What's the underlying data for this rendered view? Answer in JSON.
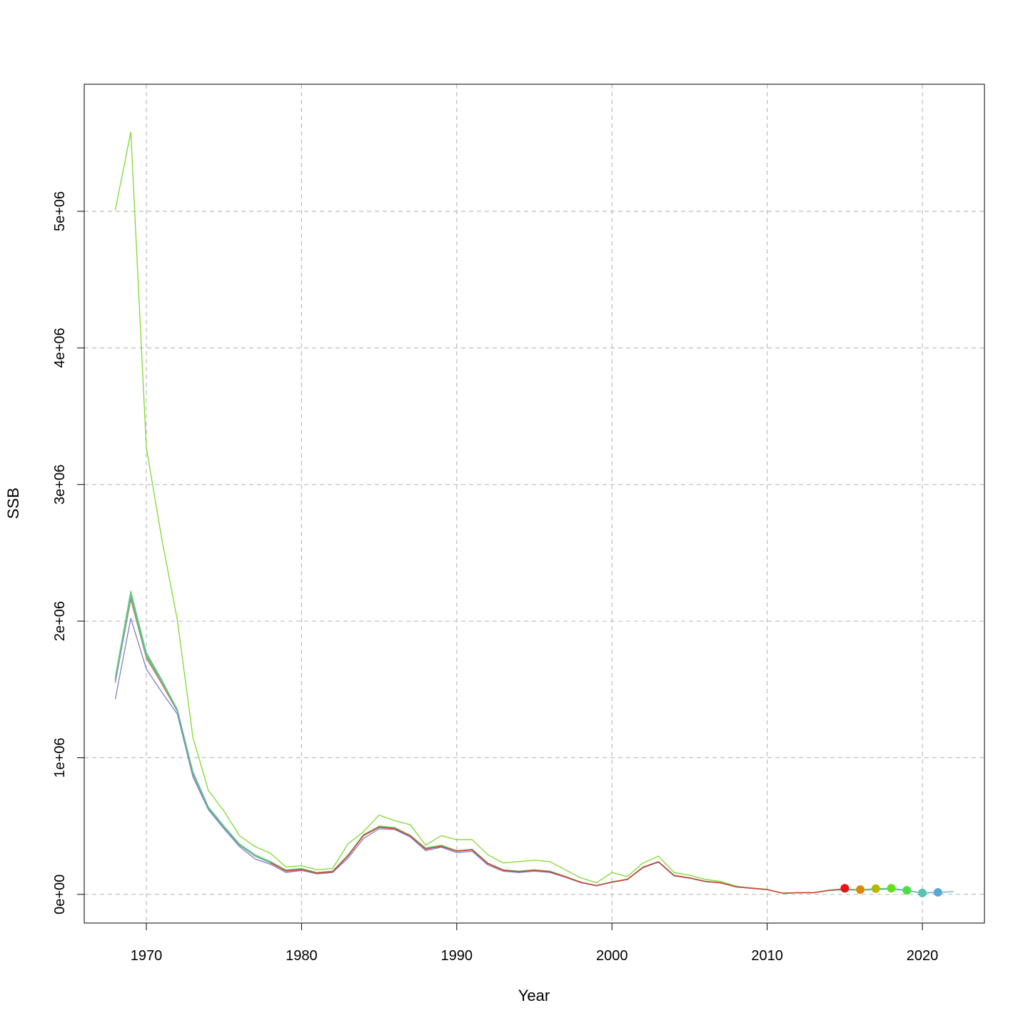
{
  "chart_data": {
    "type": "line",
    "title": "",
    "xlabel": "Year",
    "ylabel": "SSB",
    "xlim": [
      1966,
      2024
    ],
    "ylim": [
      -210000,
      5930000
    ],
    "x_ticks": [
      1970,
      1980,
      1990,
      2000,
      2010,
      2020
    ],
    "x_tick_labels": [
      "1970",
      "1980",
      "1990",
      "2000",
      "2010",
      "2020"
    ],
    "y_ticks": [
      0,
      1000000,
      2000000,
      3000000,
      4000000,
      5000000
    ],
    "y_tick_labels": [
      "0e+00",
      "1e+06",
      "2e+06",
      "3e+06",
      "4e+06",
      "5e+06"
    ],
    "grid": true,
    "series": [
      {
        "color": "#7FD82F",
        "x": [
          1968,
          1969,
          1970,
          1971,
          1972,
          1973,
          1974,
          1975,
          1976,
          1977,
          1978,
          1979,
          1980,
          1981,
          1982,
          1983,
          1984,
          1985,
          1986,
          1987,
          1988,
          1989,
          1990,
          1991,
          1992,
          1993,
          1994,
          1995,
          1996,
          1997,
          1998,
          1999,
          2000,
          2001,
          2002,
          2003,
          2004,
          2005,
          2006,
          2007,
          2008,
          2009,
          2010,
          2011,
          2012,
          2013,
          2014,
          2015,
          2016,
          2017,
          2018
        ],
        "y": [
          5010000,
          5580000,
          3270000,
          2600000,
          2010000,
          1150000,
          760000,
          610000,
          430000,
          350000,
          300000,
          200000,
          210000,
          180000,
          190000,
          370000,
          460000,
          580000,
          540000,
          510000,
          360000,
          430000,
          400000,
          400000,
          290000,
          230000,
          240000,
          250000,
          240000,
          180000,
          120000,
          85000,
          160000,
          130000,
          230000,
          280000,
          160000,
          140000,
          110000,
          95000,
          60000,
          45000,
          35000,
          10000,
          14000,
          14000,
          32000,
          38000,
          35000,
          42000,
          45000
        ]
      },
      {
        "color": "#6BAED6",
        "x": [
          1968,
          1969,
          1970,
          1971,
          1972,
          1973,
          1974,
          1975,
          1976,
          1977,
          1978,
          1979,
          1980,
          1981,
          1982,
          1983,
          1984,
          1985,
          1986,
          1987,
          1988,
          1989,
          1990,
          1991,
          1992,
          1993,
          1994,
          1995,
          1996,
          1997,
          1998,
          1999,
          2000,
          2001,
          2002,
          2003,
          2004,
          2005,
          2006,
          2007,
          2008,
          2009,
          2010,
          2011,
          2012,
          2013,
          2014,
          2015,
          2016,
          2017,
          2018,
          2019,
          2020,
          2021
        ],
        "y": [
          1590000,
          2220000,
          1770000,
          1570000,
          1350000,
          900000,
          640000,
          500000,
          370000,
          290000,
          240000,
          180000,
          190000,
          160000,
          170000,
          290000,
          430000,
          500000,
          490000,
          430000,
          340000,
          360000,
          320000,
          330000,
          230000,
          180000,
          170000,
          180000,
          170000,
          130000,
          90000,
          65000,
          90000,
          110000,
          200000,
          240000,
          140000,
          120000,
          95000,
          85000,
          55000,
          45000,
          35000,
          8000,
          12000,
          12000,
          28000,
          34000,
          30000,
          36000,
          40000,
          30000,
          10000,
          15000
        ]
      },
      {
        "color": "#7B7FD0",
        "x": [
          1968,
          1969,
          1970,
          1971,
          1972,
          1973,
          1974,
          1975,
          1976,
          1977,
          1978,
          1979,
          1980,
          1981,
          1982,
          1983,
          1984,
          1985,
          1986,
          1987,
          1988,
          1989,
          1990,
          1991,
          1992,
          1993,
          1994,
          1995,
          1996,
          1997,
          1998,
          1999,
          2000,
          2001,
          2002,
          2003,
          2004,
          2005,
          2006,
          2007,
          2008,
          2009,
          2010,
          2011,
          2012,
          2013,
          2014,
          2015
        ],
        "y": [
          1430000,
          2020000,
          1650000,
          1480000,
          1320000,
          860000,
          620000,
          480000,
          350000,
          260000,
          220000,
          160000,
          175000,
          150000,
          160000,
          265000,
          410000,
          480000,
          475000,
          420000,
          320000,
          345000,
          305000,
          315000,
          215000,
          170000,
          160000,
          170000,
          160000,
          125000,
          85000,
          62000,
          88000,
          108000,
          195000,
          235000,
          135000,
          118000,
          93000,
          83000,
          54000,
          44000,
          34000,
          8000,
          12000,
          12000,
          30000,
          38000
        ]
      },
      {
        "color": "#D46A2A",
        "x": [
          1968,
          1969,
          1970,
          1971,
          1972,
          1973,
          1974,
          1975,
          1976,
          1977,
          1978,
          1979,
          1980,
          1981,
          1982,
          1983,
          1984,
          1985,
          1986,
          1987,
          1988,
          1989,
          1990,
          1991,
          1992,
          1993,
          1994,
          1995,
          1996,
          1997,
          1998,
          1999,
          2000,
          2001,
          2002,
          2003,
          2004,
          2005,
          2006,
          2007,
          2008,
          2009,
          2010,
          2011,
          2012,
          2013,
          2014,
          2015,
          2016
        ],
        "y": [
          1550000,
          2160000,
          1730000,
          1540000,
          1340000,
          880000,
          630000,
          490000,
          360000,
          280000,
          230000,
          170000,
          180000,
          155000,
          165000,
          280000,
          430000,
          490000,
          480000,
          430000,
          330000,
          355000,
          315000,
          325000,
          225000,
          175000,
          165000,
          175000,
          165000,
          128000,
          88000,
          64000,
          90000,
          110000,
          198000,
          238000,
          138000,
          120000,
          95000,
          85000,
          55000,
          45000,
          35000,
          8000,
          12000,
          12000,
          30000,
          40000,
          32000
        ]
      },
      {
        "color": "#B5B42E",
        "x": [
          1968,
          1969,
          1970,
          1971,
          1972,
          1973,
          1974,
          1975,
          1976,
          1977,
          1978,
          1979,
          1980,
          1981,
          1982,
          1983,
          1984,
          1985,
          1986,
          1987,
          1988,
          1989,
          1990,
          1991,
          1992,
          1993,
          1994,
          1995,
          1996,
          1997,
          1998,
          1999,
          2000,
          2001,
          2002,
          2003,
          2004,
          2005,
          2006,
          2007,
          2008,
          2009,
          2010,
          2011,
          2012,
          2013,
          2014,
          2015,
          2016,
          2017
        ],
        "y": [
          1570000,
          2190000,
          1750000,
          1560000,
          1350000,
          890000,
          635000,
          495000,
          365000,
          285000,
          235000,
          175000,
          185000,
          158000,
          168000,
          285000,
          435000,
          495000,
          485000,
          432000,
          335000,
          358000,
          318000,
          328000,
          228000,
          178000,
          168000,
          178000,
          168000,
          130000,
          89000,
          65000,
          91000,
          111000,
          199000,
          239000,
          139000,
          121000,
          96000,
          86000,
          56000,
          46000,
          36000,
          8000,
          12000,
          12000,
          29000,
          36000,
          33000,
          40000
        ]
      },
      {
        "color": "#5AD65A",
        "x": [
          1968,
          1969,
          1970,
          1971,
          1972,
          1973,
          1974,
          1975,
          1976,
          1977,
          1978,
          1979,
          1980,
          1981,
          1982,
          1983,
          1984,
          1985,
          1986,
          1987,
          1988,
          1989,
          1990,
          1991,
          1992,
          1993,
          1994,
          1995,
          1996,
          1997,
          1998,
          1999,
          2000,
          2001,
          2002,
          2003,
          2004,
          2005,
          2006,
          2007,
          2008,
          2009,
          2010,
          2011,
          2012,
          2013,
          2014,
          2015,
          2016,
          2017,
          2018,
          2019
        ],
        "y": [
          1580000,
          2210000,
          1760000,
          1565000,
          1355000,
          895000,
          638000,
          498000,
          368000,
          288000,
          238000,
          178000,
          188000,
          160000,
          170000,
          288000,
          438000,
          498000,
          488000,
          434000,
          338000,
          360000,
          320000,
          330000,
          230000,
          180000,
          170000,
          180000,
          170000,
          132000,
          90000,
          66000,
          92000,
          112000,
          200000,
          240000,
          140000,
          122000,
          97000,
          87000,
          57000,
          47000,
          37000,
          8000,
          12000,
          12000,
          29000,
          35000,
          32000,
          38000,
          42000,
          32000
        ]
      },
      {
        "color": "#5BB8B8",
        "x": [
          1968,
          1969,
          1970,
          1971,
          1972,
          1973,
          1974,
          1975,
          1976,
          1977,
          1978,
          1979,
          1980,
          1981,
          1982,
          1983,
          1984,
          1985,
          1986,
          1987,
          1988,
          1989,
          1990,
          1991,
          1992,
          1993,
          1994,
          1995,
          1996,
          1997,
          1998,
          1999,
          2000,
          2001,
          2002,
          2003,
          2004,
          2005,
          2006,
          2007,
          2008,
          2009,
          2010,
          2011,
          2012,
          2013,
          2014,
          2015,
          2016,
          2017,
          2018,
          2019,
          2020
        ],
        "y": [
          1560000,
          2180000,
          1740000,
          1555000,
          1345000,
          885000,
          632000,
          493000,
          362000,
          282000,
          232000,
          172000,
          182000,
          156000,
          166000,
          282000,
          432000,
          492000,
          482000,
          428000,
          332000,
          352000,
          316000,
          326000,
          226000,
          176000,
          166000,
          176000,
          166000,
          129000,
          88000,
          64000,
          90000,
          110000,
          198000,
          238000,
          138000,
          120000,
          95000,
          85000,
          55000,
          45000,
          35000,
          8000,
          12000,
          12000,
          28000,
          34000,
          30000,
          36000,
          40000,
          28000,
          10000
        ]
      },
      {
        "color": "#5AA9D8",
        "x": [
          2015,
          2016,
          2017,
          2018,
          2019,
          2020,
          2021,
          2022
        ],
        "y": [
          34000,
          30000,
          36000,
          40000,
          28000,
          10000,
          14000,
          20000
        ]
      },
      {
        "color": "#E6312B",
        "x": [
          1978,
          1979,
          1980,
          1981,
          1982,
          1983,
          1984,
          1985,
          1986,
          1987,
          1988,
          1989,
          1990,
          1991,
          1992,
          1993,
          1994,
          1995,
          1996,
          1997,
          1998,
          1999,
          2000,
          2001,
          2002,
          2003,
          2004,
          2005,
          2006,
          2007,
          2008,
          2009,
          2010,
          2011,
          2012,
          2013,
          2014,
          2015
        ],
        "y": [
          232000,
          172000,
          182000,
          156000,
          166000,
          282000,
          432000,
          492000,
          482000,
          428000,
          332000,
          352000,
          316000,
          326000,
          226000,
          176000,
          166000,
          176000,
          166000,
          129000,
          88000,
          64000,
          90000,
          110000,
          198000,
          238000,
          138000,
          120000,
          95000,
          85000,
          55000,
          45000,
          35000,
          8000,
          12000,
          12000,
          30000,
          42000
        ]
      }
    ],
    "points": [
      {
        "x": 2015,
        "y": 45000,
        "color": "#EE1111"
      },
      {
        "x": 2016,
        "y": 35000,
        "color": "#D98A0A"
      },
      {
        "x": 2017,
        "y": 42000,
        "color": "#B5B800"
      },
      {
        "x": 2018,
        "y": 45000,
        "color": "#60E020"
      },
      {
        "x": 2019,
        "y": 30000,
        "color": "#4ADF4A"
      },
      {
        "x": 2020,
        "y": 10000,
        "color": "#5BC2B2"
      },
      {
        "x": 2021,
        "y": 15000,
        "color": "#5AA9D0"
      }
    ]
  }
}
